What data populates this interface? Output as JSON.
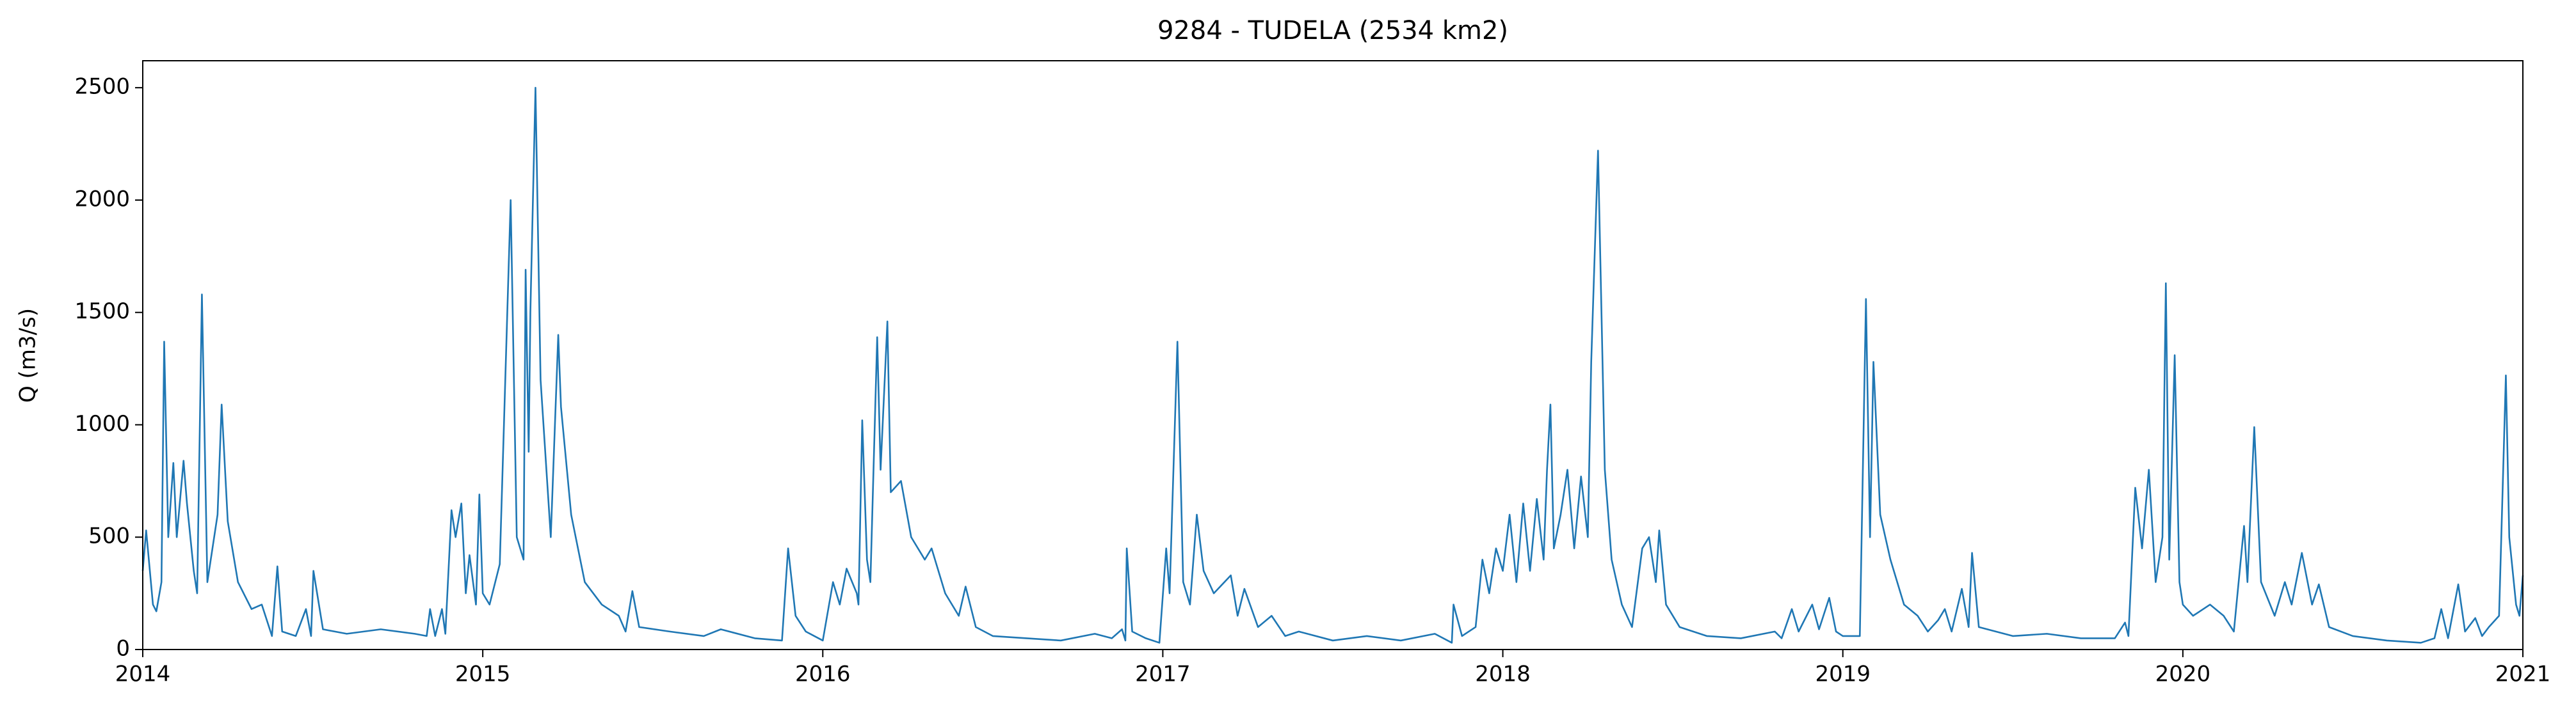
{
  "chart_data": {
    "type": "line",
    "title": "9284 - TUDELA (2534 km2)",
    "y_label": "Q (m3/s)",
    "xlim": [
      2014,
      2021
    ],
    "xticks": [
      2014,
      2015,
      2016,
      2017,
      2018,
      2019,
      2020,
      2021
    ],
    "ylim": [
      0,
      2620
    ],
    "yticks": [
      0,
      500,
      1000,
      1500,
      2000,
      2500
    ],
    "grid": false,
    "series": [
      {
        "name": "Q",
        "color": "#1f77b4",
        "x": [
          2014.0,
          2014.01,
          2014.03,
          2014.04,
          2014.055,
          2014.063,
          2014.075,
          2014.09,
          2014.1,
          2014.12,
          2014.13,
          2014.15,
          2014.16,
          2014.174,
          2014.19,
          2014.22,
          2014.232,
          2014.25,
          2014.28,
          2014.32,
          2014.35,
          2014.38,
          2014.396,
          2014.41,
          2014.45,
          2014.48,
          2014.495,
          2014.502,
          2014.53,
          2014.6,
          2014.7,
          2014.8,
          2014.835,
          2014.845,
          2014.86,
          2014.88,
          2014.89,
          2014.908,
          2014.92,
          2014.937,
          2014.95,
          2014.961,
          2014.98,
          2014.99,
          2015.0,
          2015.02,
          2015.05,
          2015.082,
          2015.1,
          2015.12,
          2015.126,
          2015.135,
          2015.14,
          2015.155,
          2015.17,
          2015.2,
          2015.222,
          2015.23,
          2015.26,
          2015.3,
          2015.35,
          2015.4,
          2015.42,
          2015.44,
          2015.46,
          2015.55,
          2015.65,
          2015.7,
          2015.8,
          2015.88,
          2015.898,
          2015.92,
          2015.95,
          2016.0,
          2016.03,
          2016.05,
          2016.07,
          2016.1,
          2016.105,
          2016.116,
          2016.13,
          2016.14,
          2016.16,
          2016.17,
          2016.19,
          2016.2,
          2016.23,
          2016.26,
          2016.3,
          2016.32,
          2016.36,
          2016.4,
          2016.42,
          2016.45,
          2016.5,
          2016.6,
          2016.7,
          2016.8,
          2016.85,
          2016.88,
          2016.89,
          2016.894,
          2016.91,
          2016.95,
          2016.99,
          2017.01,
          2017.02,
          2017.043,
          2017.06,
          2017.08,
          2017.1,
          2017.12,
          2017.15,
          2017.2,
          2017.22,
          2017.24,
          2017.28,
          2017.32,
          2017.36,
          2017.4,
          2017.5,
          2017.6,
          2017.7,
          2017.8,
          2017.85,
          2017.855,
          2017.88,
          2017.92,
          2017.94,
          2017.96,
          2017.98,
          2018.0,
          2018.02,
          2018.04,
          2018.06,
          2018.08,
          2018.1,
          2018.12,
          2018.13,
          2018.14,
          2018.15,
          2018.17,
          2018.19,
          2018.21,
          2018.23,
          2018.25,
          2018.26,
          2018.28,
          2018.3,
          2018.32,
          2018.35,
          2018.38,
          2018.41,
          2018.43,
          2018.45,
          2018.46,
          2018.48,
          2018.52,
          2018.6,
          2018.7,
          2018.8,
          2018.82,
          2018.85,
          2018.87,
          2018.91,
          2018.93,
          2018.96,
          2018.98,
          2019.0,
          2019.05,
          2019.068,
          2019.08,
          2019.09,
          2019.11,
          2019.14,
          2019.18,
          2019.22,
          2019.25,
          2019.28,
          2019.3,
          2019.32,
          2019.35,
          2019.37,
          2019.38,
          2019.4,
          2019.5,
          2019.6,
          2019.7,
          2019.8,
          2019.83,
          2019.84,
          2019.86,
          2019.88,
          2019.9,
          2019.92,
          2019.94,
          2019.95,
          2019.96,
          2019.976,
          2019.99,
          2020.0,
          2020.03,
          2020.08,
          2020.12,
          2020.15,
          2020.18,
          2020.19,
          2020.21,
          2020.23,
          2020.27,
          2020.3,
          2020.32,
          2020.35,
          2020.38,
          2020.4,
          2020.43,
          2020.5,
          2020.6,
          2020.7,
          2020.74,
          2020.76,
          2020.78,
          2020.81,
          2020.83,
          2020.86,
          2020.88,
          2020.9,
          2020.93,
          2020.95,
          2020.96,
          2020.98,
          2020.99,
          2021.0
        ],
        "values": [
          350,
          530,
          200,
          170,
          300,
          1370,
          500,
          830,
          500,
          840,
          650,
          350,
          250,
          1580,
          300,
          600,
          1090,
          570,
          300,
          180,
          200,
          60,
          370,
          80,
          60,
          180,
          60,
          350,
          90,
          70,
          90,
          70,
          60,
          180,
          60,
          180,
          70,
          620,
          500,
          650,
          250,
          420,
          200,
          690,
          250,
          200,
          380,
          2000,
          500,
          400,
          1690,
          880,
          1500,
          2500,
          1200,
          500,
          1400,
          1080,
          600,
          300,
          200,
          150,
          80,
          260,
          100,
          80,
          60,
          90,
          50,
          40,
          450,
          150,
          80,
          40,
          300,
          200,
          360,
          250,
          200,
          1020,
          400,
          300,
          1390,
          800,
          1460,
          700,
          750,
          500,
          400,
          450,
          250,
          150,
          280,
          100,
          60,
          50,
          40,
          70,
          50,
          90,
          40,
          450,
          80,
          50,
          30,
          450,
          250,
          1370,
          300,
          200,
          600,
          350,
          250,
          330,
          150,
          270,
          100,
          150,
          60,
          80,
          40,
          60,
          40,
          70,
          30,
          200,
          60,
          100,
          400,
          250,
          450,
          350,
          600,
          300,
          650,
          350,
          670,
          400,
          800,
          1090,
          450,
          600,
          800,
          450,
          770,
          500,
          1280,
          2220,
          800,
          400,
          200,
          100,
          450,
          500,
          300,
          530,
          200,
          100,
          60,
          50,
          80,
          50,
          180,
          80,
          200,
          90,
          230,
          80,
          60,
          60,
          1560,
          500,
          1280,
          600,
          400,
          200,
          150,
          80,
          130,
          180,
          80,
          270,
          100,
          430,
          100,
          60,
          70,
          50,
          50,
          120,
          60,
          720,
          450,
          800,
          300,
          500,
          1630,
          400,
          1310,
          300,
          200,
          150,
          200,
          150,
          80,
          550,
          300,
          990,
          300,
          150,
          300,
          200,
          430,
          200,
          290,
          100,
          60,
          40,
          30,
          50,
          180,
          50,
          290,
          80,
          140,
          60,
          100,
          150,
          1220,
          500,
          200,
          150,
          330
        ]
      }
    ]
  }
}
